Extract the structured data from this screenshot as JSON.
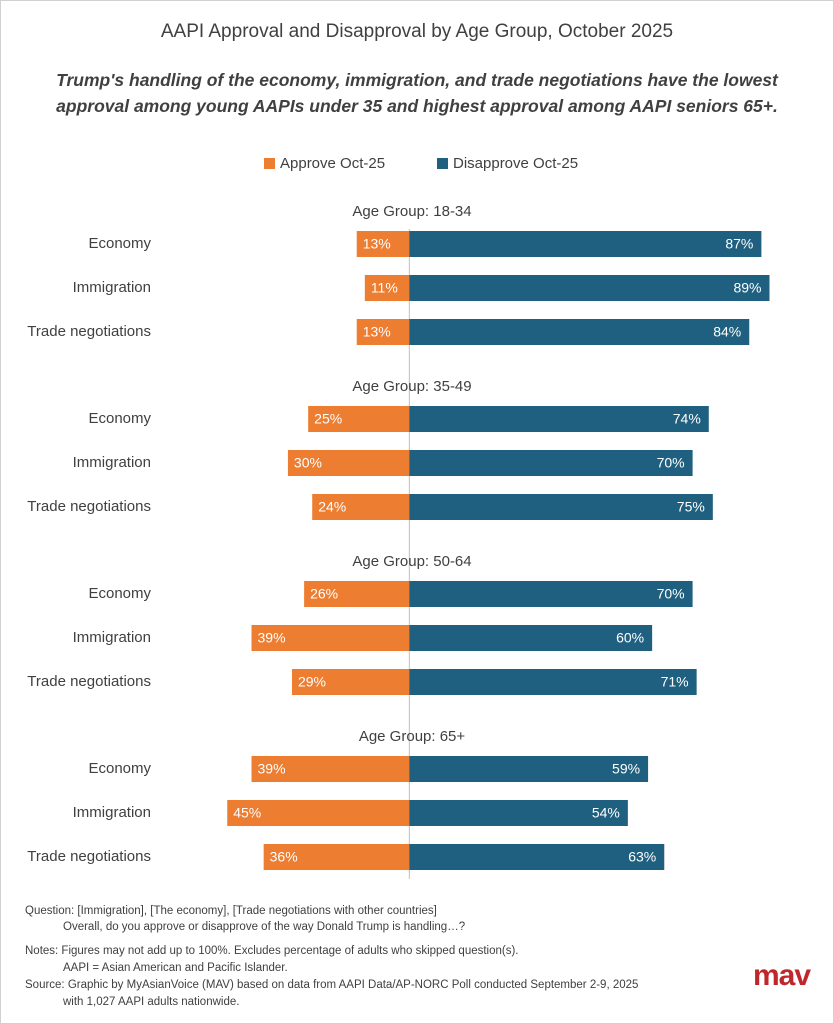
{
  "chart_data": {
    "type": "diverging_bar",
    "title": "AAPI Approval and Disapproval by Age Group, October 2025",
    "subtitle": "Trump's handling of the economy, immigration, and trade negotiations have the lowest approval among young AAPIs under 35 and highest approval among AAPI seniors 65+.",
    "xlim": [
      -50,
      100
    ],
    "groups": [
      "Age Group: 18-34",
      "Age Group: 35-49",
      "Age Group: 50-64",
      "Age Group: 65+"
    ],
    "categories": [
      "Economy",
      "Immigration",
      "Trade negotiations"
    ],
    "series": [
      {
        "name": "Approve Oct-25",
        "color": "#ed7d31",
        "values": [
          [
            13,
            11,
            13
          ],
          [
            25,
            30,
            24
          ],
          [
            26,
            39,
            29
          ],
          [
            39,
            45,
            36
          ]
        ],
        "value_labels": [
          [
            "13%",
            "11%",
            "13%"
          ],
          [
            "25%",
            "30%",
            "24%"
          ],
          [
            "26%",
            "39%",
            "29%"
          ],
          [
            "39%",
            "45%",
            "36%"
          ]
        ]
      },
      {
        "name": "Disapprove Oct-25",
        "color": "#1f5f7f",
        "values": [
          [
            87,
            89,
            84
          ],
          [
            74,
            70,
            75
          ],
          [
            70,
            60,
            71
          ],
          [
            59,
            54,
            63
          ]
        ],
        "value_labels": [
          [
            "87%",
            "89%",
            "84%"
          ],
          [
            "74%",
            "70%",
            "75%"
          ],
          [
            "70%",
            "60%",
            "71%"
          ],
          [
            "59%",
            "54%",
            "63%"
          ]
        ]
      }
    ]
  },
  "footnotes": [
    "Question: [Immigration], [The economy], [Trade negotiations with other countries]",
    "Overall, do you approve or disapprove of the way Donald Trump is handling…?",
    "Notes: Figures may not add up to 100%. Excludes percentage of adults who skipped question(s).",
    "AAPI = Asian American and Pacific Islander.",
    "Source: Graphic by MyAsianVoice (MAV) based on data from AAPI Data/AP-NORC Poll conducted September 2-9, 2025",
    "with 1,027 AAPI adults nationwide."
  ],
  "logo": "mav"
}
